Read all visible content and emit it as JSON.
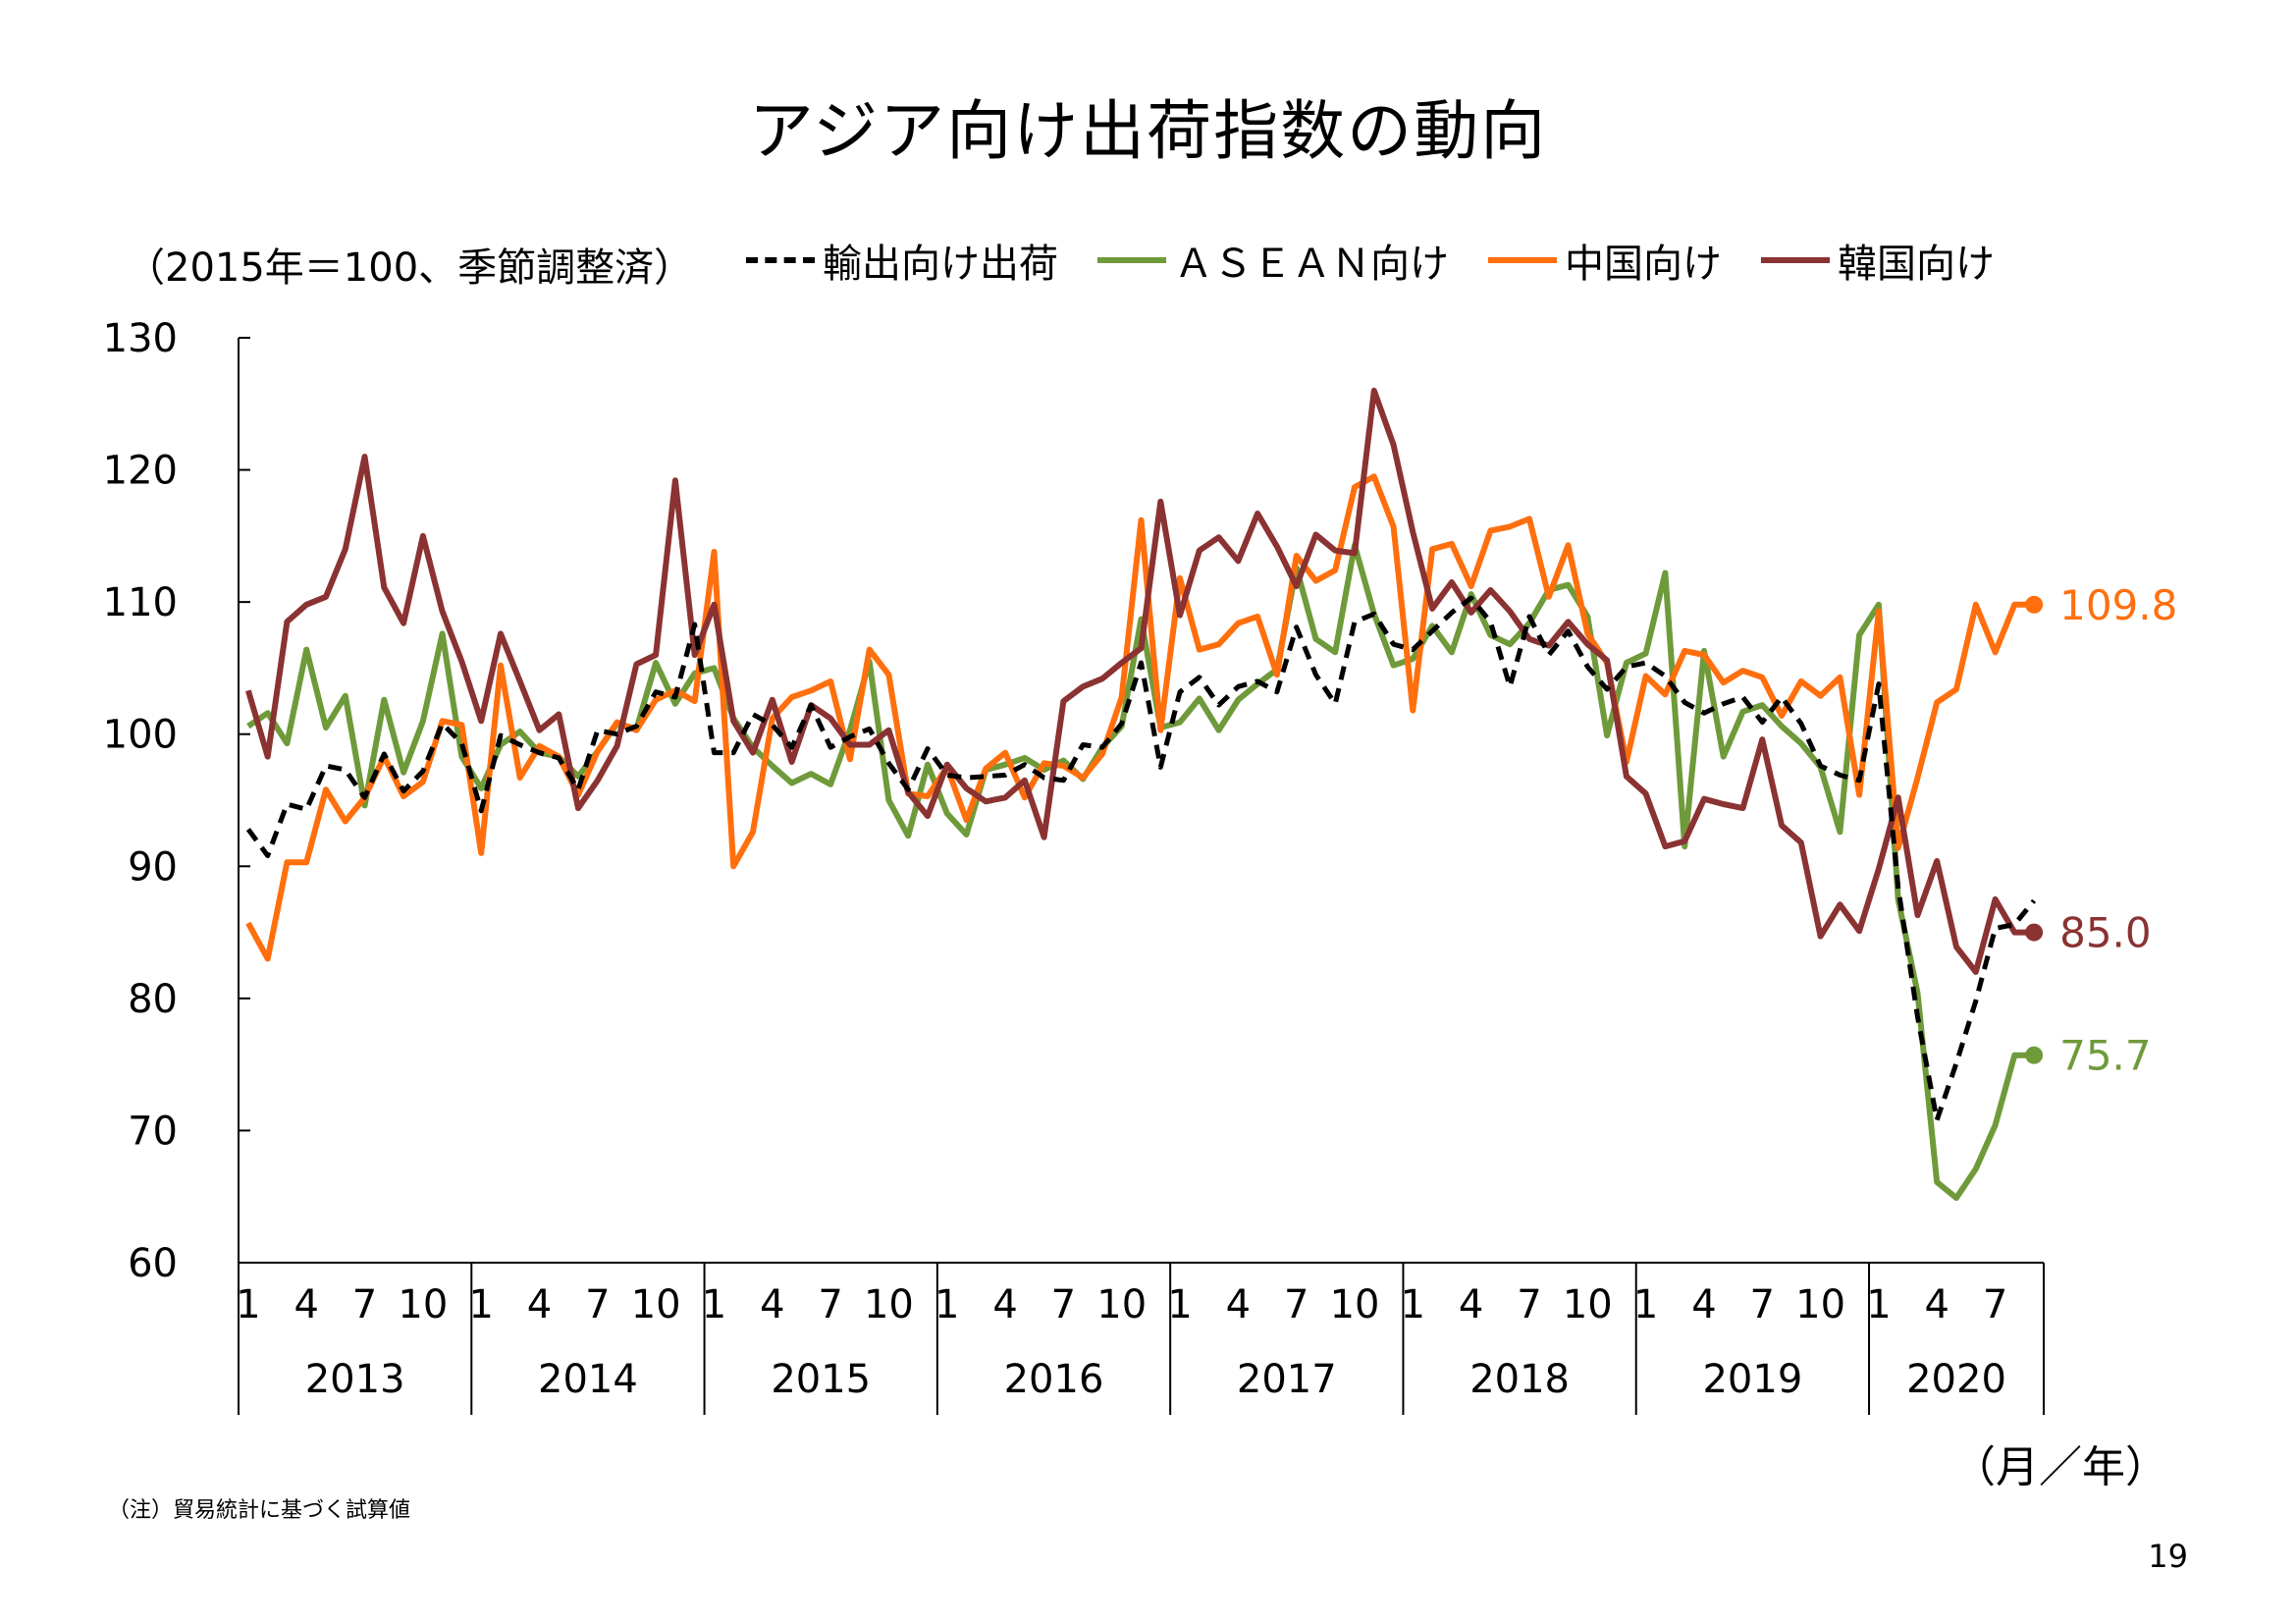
{
  "title": "アジア向け出荷指数の動向",
  "unit_note": "（2015年＝100、季節調整済）",
  "x_unit": "（月／年）",
  "footnote": "（注）貿易統計に基づく試算値",
  "page_number": "19",
  "colors": {
    "export": "#000000",
    "asean": "#6f9a3a",
    "china": "#ff6f0e",
    "korea": "#8b3232"
  },
  "chart_data": {
    "type": "line",
    "title": "アジア向け出荷指数の動向",
    "ylim": [
      60,
      130
    ],
    "yticks": [
      60,
      70,
      80,
      90,
      100,
      110,
      120,
      130
    ],
    "month_ticks": [
      "1",
      "4",
      "7",
      "10"
    ],
    "years": [
      "2013",
      "2014",
      "2015",
      "2016",
      "2017",
      "2018",
      "2019",
      "2020"
    ],
    "months_per_year": [
      12,
      12,
      12,
      12,
      12,
      12,
      12,
      9
    ],
    "series": [
      {
        "name": "輸出向け出荷",
        "color": "#000000",
        "style": "dashed",
        "values": [
          92.8,
          90.8,
          94.7,
          94.3,
          97.6,
          97.3,
          95.2,
          98.5,
          95.7,
          97.2,
          100.8,
          99.3,
          94.2,
          99.9,
          99.2,
          98.6,
          98.2,
          95.8,
          100.3,
          100.0,
          100.6,
          103.2,
          102.8,
          108.3,
          98.6,
          98.6,
          101.5,
          100.7,
          99.0,
          102.2,
          99.0,
          99.8,
          100.4,
          97.8,
          95.8,
          98.9,
          96.9,
          96.7,
          96.8,
          96.9,
          97.7,
          96.7,
          96.5,
          99.2,
          99.0,
          100.8,
          105.4,
          97.5,
          103.2,
          104.3,
          102.2,
          103.6,
          104.0,
          103.2,
          108.1,
          104.5,
          102.3,
          108.5,
          109.1,
          106.8,
          106.4,
          107.8,
          109.2,
          110.3,
          108.5,
          103.6,
          108.9,
          106.0,
          107.8,
          105.1,
          103.4,
          105.1,
          105.4,
          104.4,
          102.4,
          101.6,
          102.3,
          102.8,
          100.9,
          102.8,
          100.8,
          97.6,
          96.9,
          96.5,
          103.8,
          88.4,
          78.6,
          70.8,
          75.1,
          79.8,
          85.3,
          85.6,
          87.4
        ]
      },
      {
        "name": "ＡＳＥＡＮ向け",
        "color": "#6f9a3a",
        "style": "solid",
        "values": [
          100.6,
          101.6,
          99.3,
          106.4,
          100.5,
          102.9,
          94.6,
          102.6,
          97.1,
          101.0,
          107.6,
          98.3,
          95.9,
          99.2,
          100.2,
          98.6,
          98.3,
          96.8,
          98.7,
          100.8,
          100.4,
          105.4,
          102.3,
          104.6,
          105.0,
          101.2,
          99.0,
          97.6,
          96.3,
          97.0,
          96.2,
          100.3,
          105.5,
          95.0,
          92.3,
          97.7,
          94.0,
          92.4,
          97.3,
          97.7,
          98.2,
          97.3,
          98.0,
          96.6,
          99.0,
          100.6,
          108.7,
          100.5,
          100.9,
          102.7,
          100.3,
          102.6,
          103.8,
          104.9,
          112.6,
          107.2,
          106.2,
          114.3,
          109.1,
          105.2,
          105.7,
          108.2,
          106.2,
          110.6,
          107.5,
          106.8,
          108.4,
          110.9,
          111.3,
          108.9,
          99.9,
          105.4,
          106.1,
          112.2,
          91.5,
          106.3,
          98.3,
          101.7,
          102.2,
          100.6,
          99.3,
          97.5,
          92.6,
          107.5,
          109.8,
          87.5,
          80.4,
          66.1,
          64.9,
          67.1,
          70.4,
          75.7,
          75.7
        ]
      },
      {
        "name": "中国向け",
        "color": "#ff6f0e",
        "style": "solid",
        "values": [
          85.7,
          83.0,
          90.3,
          90.3,
          95.8,
          93.4,
          95.2,
          98.3,
          95.3,
          96.4,
          101.0,
          100.7,
          91.0,
          105.2,
          96.7,
          99.1,
          98.3,
          95.4,
          98.7,
          100.9,
          100.3,
          102.6,
          103.3,
          102.5,
          113.8,
          90.0,
          92.6,
          101.2,
          102.8,
          103.3,
          104.0,
          98.1,
          106.4,
          104.5,
          95.5,
          95.3,
          97.5,
          93.5,
          97.4,
          98.6,
          95.2,
          97.8,
          97.6,
          96.7,
          98.5,
          102.8,
          116.2,
          100.3,
          111.8,
          106.4,
          106.8,
          108.4,
          108.9,
          104.5,
          113.5,
          111.6,
          112.4,
          118.7,
          119.5,
          115.7,
          101.8,
          114.0,
          114.4,
          111.2,
          115.4,
          115.7,
          116.3,
          110.4,
          114.3,
          107.6,
          105.4,
          97.9,
          104.4,
          103.0,
          106.3,
          106.0,
          103.9,
          104.8,
          104.3,
          101.4,
          104.0,
          102.9,
          104.3,
          95.4,
          109.3,
          91.4,
          96.7,
          102.4,
          103.4,
          109.8,
          106.2,
          109.8,
          109.8
        ]
      },
      {
        "name": "韓国向け",
        "color": "#8b3232",
        "style": "solid",
        "values": [
          103.3,
          98.3,
          108.5,
          109.8,
          110.4,
          114.0,
          121.0,
          111.1,
          108.4,
          115.0,
          109.3,
          105.5,
          101.0,
          107.6,
          104.0,
          100.3,
          101.5,
          94.4,
          96.5,
          99.1,
          105.3,
          106.0,
          119.2,
          106.0,
          109.8,
          101.0,
          98.6,
          102.6,
          97.9,
          102.2,
          101.2,
          99.2,
          99.2,
          100.3,
          95.6,
          93.8,
          97.7,
          95.9,
          94.9,
          95.2,
          96.5,
          92.2,
          102.5,
          103.6,
          104.2,
          105.4,
          106.5,
          117.6,
          109.0,
          113.9,
          114.9,
          113.1,
          116.7,
          114.2,
          111.2,
          115.1,
          113.9,
          113.7,
          126.0,
          121.9,
          115.3,
          109.5,
          111.5,
          109.2,
          110.9,
          109.3,
          107.2,
          106.7,
          108.5,
          106.8,
          105.6,
          96.8,
          95.5,
          91.5,
          91.9,
          95.1,
          94.7,
          94.4,
          99.6,
          93.1,
          91.8,
          84.7,
          87.1,
          85.1,
          89.8,
          95.2,
          86.3,
          90.4,
          83.9,
          82.0,
          87.5,
          85.0,
          85.0
        ]
      }
    ],
    "end_labels": [
      {
        "series": "中国向け",
        "text": "109.8",
        "value": 109.8,
        "color": "#ff6f0e"
      },
      {
        "series": "韓国向け",
        "text": "85.0",
        "value": 85.0,
        "color": "#8b3232"
      },
      {
        "series": "ＡＳＥＡＮ向け",
        "text": "75.7",
        "value": 75.7,
        "color": "#6f9a3a"
      }
    ]
  }
}
